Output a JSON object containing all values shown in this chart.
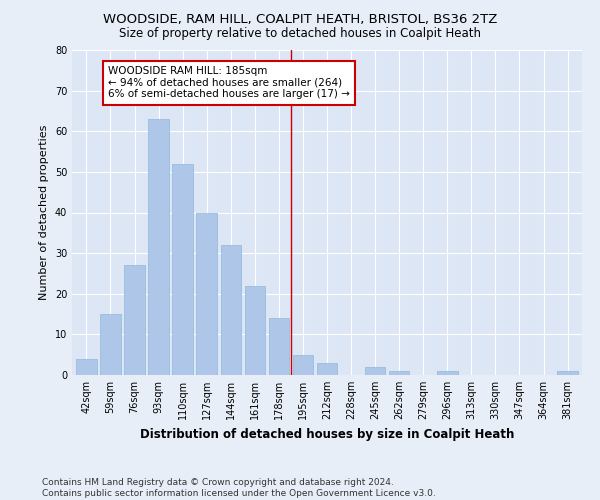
{
  "title1": "WOODSIDE, RAM HILL, COALPIT HEATH, BRISTOL, BS36 2TZ",
  "title2": "Size of property relative to detached houses in Coalpit Heath",
  "xlabel": "Distribution of detached houses by size in Coalpit Heath",
  "ylabel": "Number of detached properties",
  "categories": [
    "42sqm",
    "59sqm",
    "76sqm",
    "93sqm",
    "110sqm",
    "127sqm",
    "144sqm",
    "161sqm",
    "178sqm",
    "195sqm",
    "212sqm",
    "228sqm",
    "245sqm",
    "262sqm",
    "279sqm",
    "296sqm",
    "313sqm",
    "330sqm",
    "347sqm",
    "364sqm",
    "381sqm"
  ],
  "values": [
    4,
    15,
    27,
    63,
    52,
    40,
    32,
    22,
    14,
    5,
    3,
    0,
    2,
    1,
    0,
    1,
    0,
    0,
    0,
    0,
    1
  ],
  "bar_color": "#aec6e8",
  "bar_edgecolor": "#8fb8d8",
  "bg_color": "#dce6f5",
  "fig_bg_color": "#e8eef8",
  "grid_color": "#ffffff",
  "vline_x": 8.5,
  "vline_color": "#cc0000",
  "annotation_text": "WOODSIDE RAM HILL: 185sqm\n← 94% of detached houses are smaller (264)\n6% of semi-detached houses are larger (17) →",
  "annotation_box_edgecolor": "#cc0000",
  "annotation_box_facecolor": "#ffffff",
  "ylim": [
    0,
    80
  ],
  "yticks": [
    0,
    10,
    20,
    30,
    40,
    50,
    60,
    70,
    80
  ],
  "footnote": "Contains HM Land Registry data © Crown copyright and database right 2024.\nContains public sector information licensed under the Open Government Licence v3.0.",
  "title1_fontsize": 9.5,
  "title2_fontsize": 8.5,
  "xlabel_fontsize": 8.5,
  "ylabel_fontsize": 8,
  "tick_fontsize": 7,
  "annotation_fontsize": 7.5,
  "footnote_fontsize": 6.5
}
